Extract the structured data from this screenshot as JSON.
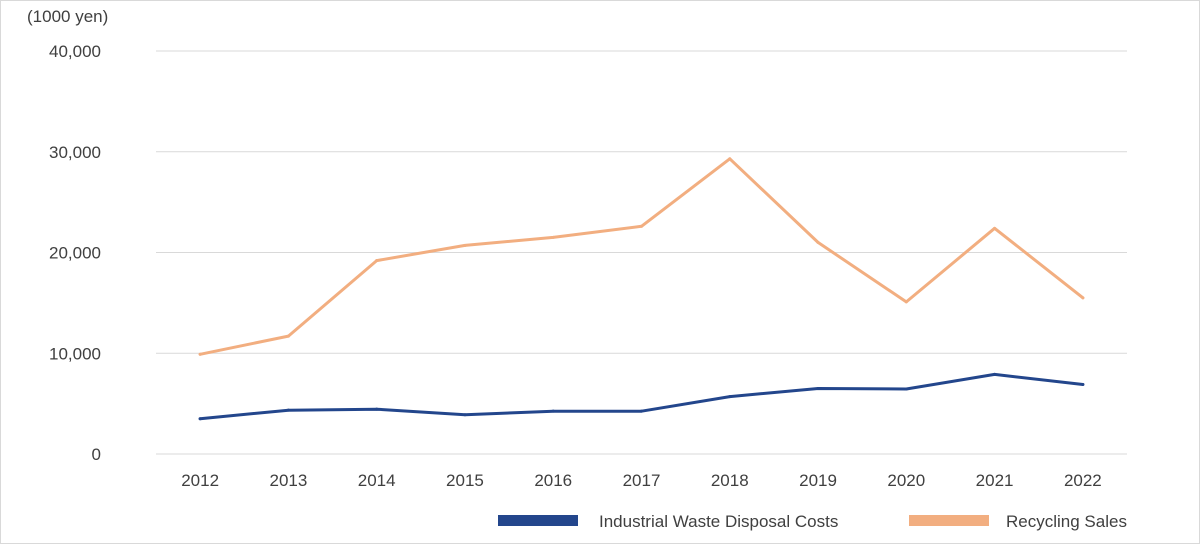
{
  "chart_data": {
    "type": "line",
    "unit_label": "(1000 yen)",
    "categories": [
      "2012",
      "2013",
      "2014",
      "2015",
      "2016",
      "2017",
      "2018",
      "2019",
      "2020",
      "2021",
      "2022"
    ],
    "ylim": [
      0,
      40000
    ],
    "yticks": [
      0,
      10000,
      20000,
      30000,
      40000
    ],
    "ytick_labels": [
      "0",
      "10,000",
      "20,000",
      "30,000",
      "40,000"
    ],
    "grid": true,
    "legend_position": "bottom-right",
    "series": [
      {
        "name": "Industrial Waste Disposal Costs",
        "color": "#23468c",
        "values": [
          3500,
          4350,
          4450,
          3900,
          4250,
          4250,
          5700,
          6500,
          6450,
          7900,
          6900
        ]
      },
      {
        "name": "Recycling Sales",
        "color": "#f2ae80",
        "values": [
          9900,
          11700,
          19200,
          20700,
          21500,
          22600,
          29300,
          21000,
          15100,
          22400,
          15500
        ]
      }
    ]
  }
}
